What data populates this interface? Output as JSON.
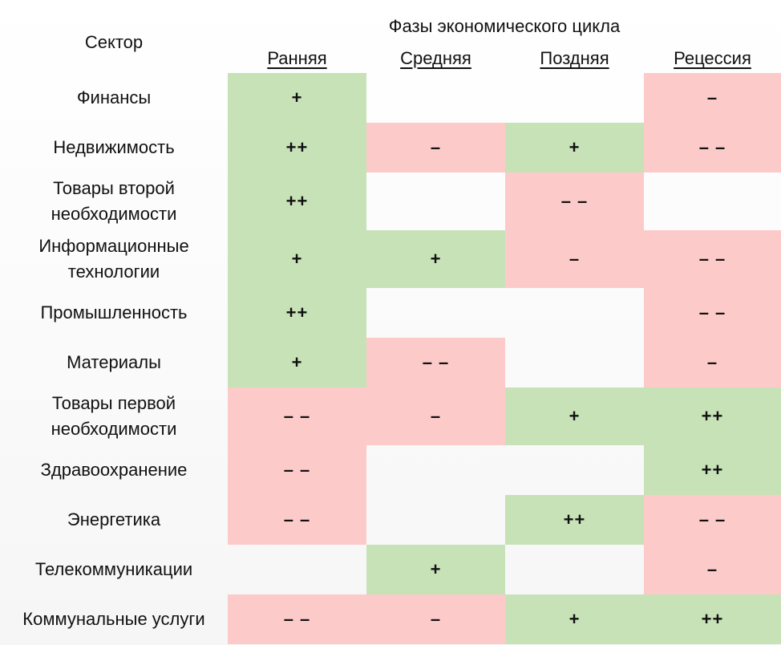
{
  "header": {
    "sector_title": "Сектор",
    "phases_title": "Фазы экономического цикла",
    "phases": [
      "Ранняя",
      "Средняя",
      "Поздняя",
      "Рецессия"
    ]
  },
  "colors": {
    "positive": "#c8e2b8",
    "negative": "#fdcaca",
    "neutral": "transparent"
  },
  "rows": [
    {
      "sector": "Финансы",
      "cells": [
        "+",
        "",
        "",
        "–"
      ]
    },
    {
      "sector": "Недвижимость",
      "cells": [
        "++",
        "–",
        "+",
        "– –"
      ]
    },
    {
      "sector": "Товары второй\nнеобходимости",
      "cells": [
        "++",
        "",
        "– –",
        ""
      ]
    },
    {
      "sector": "Информационные\nтехнологии",
      "cells": [
        "+",
        "+",
        "–",
        "– –"
      ]
    },
    {
      "sector": "Промышленность",
      "cells": [
        "++",
        "",
        "",
        "– –"
      ]
    },
    {
      "sector": "Материалы",
      "cells": [
        "+",
        "– –",
        "",
        "–"
      ]
    },
    {
      "sector": "Товары первой\nнеобходимости",
      "cells": [
        "– –",
        "–",
        "+",
        "++"
      ]
    },
    {
      "sector": "Здравоохранение",
      "cells": [
        "– –",
        "",
        "",
        "++"
      ]
    },
    {
      "sector": "Энергетика",
      "cells": [
        "– –",
        "",
        "++",
        "– –"
      ]
    },
    {
      "sector": "Телекоммуникации",
      "cells": [
        "",
        "+",
        "",
        "–"
      ]
    },
    {
      "sector": "Коммунальные услуги",
      "cells": [
        "– –",
        "–",
        "+",
        "++"
      ]
    }
  ]
}
